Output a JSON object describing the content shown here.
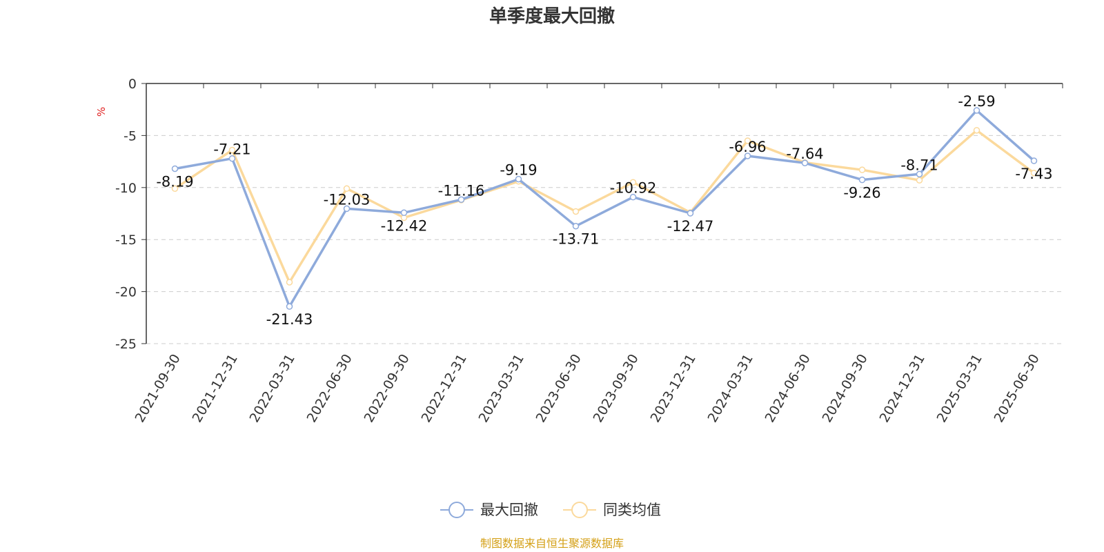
{
  "chart_data": {
    "type": "line",
    "title": "单季度最大回撤",
    "y_unit": "%",
    "ylim": [
      -25,
      0
    ],
    "y_ticks": [
      0,
      -5,
      -10,
      -15,
      -20,
      -25
    ],
    "grid": "horizontal dashed",
    "legend_position": "bottom-center",
    "categories": [
      "2021-09-30",
      "2021-12-31",
      "2022-03-31",
      "2022-06-30",
      "2022-09-30",
      "2022-12-31",
      "2023-03-31",
      "2023-06-30",
      "2023-09-30",
      "2023-12-31",
      "2024-03-31",
      "2024-06-30",
      "2024-09-30",
      "2024-12-31",
      "2025-03-31",
      "2025-06-30"
    ],
    "series": [
      {
        "name": "最大回撤",
        "color": "#8eaadb",
        "labeled": true,
        "values": [
          -8.19,
          -7.21,
          -21.43,
          -12.03,
          -12.42,
          -11.16,
          -9.19,
          -13.71,
          -10.92,
          -12.47,
          -6.96,
          -7.64,
          -9.26,
          -8.71,
          -2.59,
          -7.43
        ]
      },
      {
        "name": "同类均值",
        "color": "#fbd99c",
        "labeled": false,
        "values": [
          -10.1,
          -6.4,
          -19.1,
          -10.1,
          -12.9,
          -11.2,
          -9.4,
          -12.3,
          -9.5,
          -12.4,
          -5.5,
          -7.6,
          -8.3,
          -9.3,
          -4.5,
          -8.6
        ]
      }
    ],
    "source_note": "制图数据来自恒生聚源数据库",
    "source_color": "#d4a017",
    "unit_color": "#e02020"
  }
}
